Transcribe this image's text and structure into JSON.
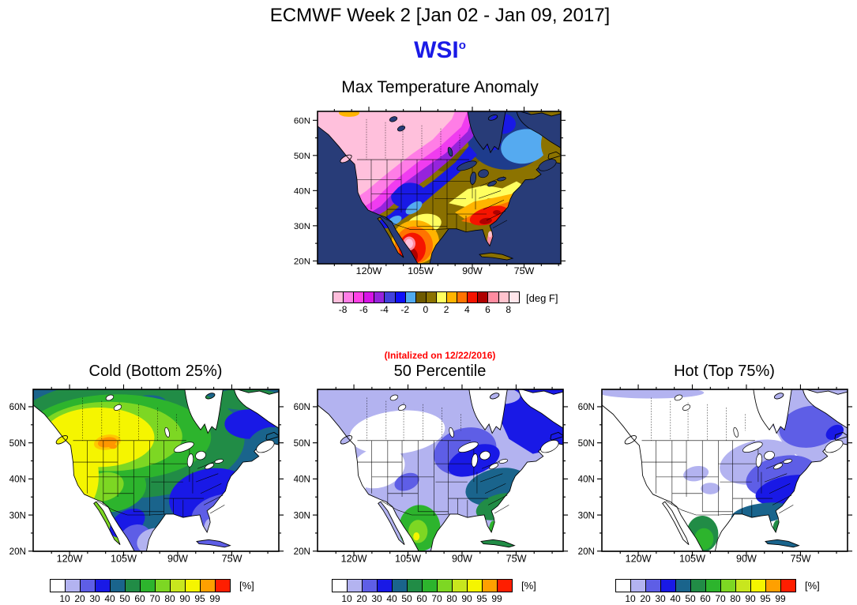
{
  "header": {
    "title": "ECMWF Week 2 [Jan 02 - Jan 09, 2017]",
    "logo_text": "WSI",
    "logo_sup": "o",
    "logo_color": "#1A1AE6"
  },
  "annotation": {
    "text": "(Initalized on 12/22/2016)",
    "color": "#FF0000"
  },
  "axes": {
    "lat_labels": [
      "60N",
      "50N",
      "40N",
      "30N",
      "20N"
    ],
    "lon_labels": [
      "120W",
      "105W",
      "90W",
      "75W"
    ]
  },
  "maps": {
    "anomaly": {
      "title": "Max Temperature Anomaly",
      "unit_label": "[deg F]",
      "ocean_color": "#283C78",
      "colorbar": {
        "colors": [
          "#FFBEDC",
          "#FF7DE6",
          "#FF41E6",
          "#D714E6",
          "#9623DC",
          "#4141DC",
          "#0F0FFA",
          "#50AAF0",
          "#6E5A00",
          "#8C7300",
          "#FFFF5F",
          "#FFB400",
          "#FF7300",
          "#F51400",
          "#AF0000",
          "#FF8CA0",
          "#FFC3CD",
          "#FFE6EB"
        ],
        "tick_labels": [
          "-8",
          "-6",
          "-4",
          "-2",
          "0",
          "2",
          "4",
          "6",
          "8"
        ]
      },
      "regions": [
        {
          "name": "base",
          "color": "#8A7000"
        },
        {
          "name": "khaki-dark",
          "color": "#6E5A00"
        },
        {
          "name": "navy-ne",
          "color": "#1E3C8C"
        },
        {
          "name": "blue-ne",
          "color": "#1919E6"
        },
        {
          "name": "skyblue-ne",
          "color": "#55AAF0"
        },
        {
          "name": "khaki-ne",
          "color": "#8C7300"
        },
        {
          "name": "purple-nw",
          "color": "#9623DC"
        },
        {
          "name": "blue-sw",
          "color": "#1919E6"
        },
        {
          "name": "skyblue-sw",
          "color": "#55AAF0"
        },
        {
          "name": "magenta-nw",
          "color": "#F03CF0"
        },
        {
          "name": "pink-nw",
          "color": "#FF7DE6"
        },
        {
          "name": "lightpink-nw",
          "color": "#FFC0DC"
        },
        {
          "name": "gold-top-notch",
          "color": "#FFB400"
        },
        {
          "name": "yellow-band",
          "color": "#FFFF5F"
        },
        {
          "name": "yellow-tx",
          "color": "#FFFF5F"
        },
        {
          "name": "gold-band",
          "color": "#FFB400"
        },
        {
          "name": "orange-band",
          "color": "#FF7300"
        },
        {
          "name": "red-core",
          "color": "#F51400"
        },
        {
          "name": "darkred-spots",
          "color": "#AF0000"
        },
        {
          "name": "florida-salmon",
          "color": "#FF8CA0"
        },
        {
          "name": "florida-lightpink",
          "color": "#FFC3CD"
        },
        {
          "name": "mexico-gold",
          "color": "#FFB400"
        },
        {
          "name": "mexico-orange",
          "color": "#FF7300"
        },
        {
          "name": "mexico-red",
          "color": "#F51400"
        },
        {
          "name": "mexico-darkred",
          "color": "#AF0000"
        },
        {
          "name": "mexico-salmon",
          "color": "#FF8CA0"
        },
        {
          "name": "mexico-pink",
          "color": "#FFC0DC"
        }
      ]
    },
    "cold": {
      "title": "Cold (Bottom 25%)",
      "unit_label": "[%]",
      "ocean_color": "#FFFFFF",
      "colorbar": {
        "colors": [
          "#FFFFFF",
          "#B3B3F0",
          "#5E5EE6",
          "#1919E6",
          "#1A648C",
          "#218C46",
          "#2DB42D",
          "#7DD723",
          "#C8E61E",
          "#F5F500",
          "#FFA000",
          "#FF1E00"
        ],
        "tick_labels": [
          "10",
          "20",
          "30",
          "40",
          "50",
          "60",
          "70",
          "80",
          "90",
          "95",
          "99"
        ]
      },
      "regions": [
        {
          "name": "base",
          "color": "#1A648C"
        },
        {
          "name": "green-dark",
          "color": "#218C46"
        },
        {
          "name": "blue-ne",
          "color": "#1919E6"
        },
        {
          "name": "teal-ne",
          "color": "#1A648C"
        },
        {
          "name": "green-mid",
          "color": "#2DB42D"
        },
        {
          "name": "green-light",
          "color": "#7DD723"
        },
        {
          "name": "yellow",
          "color": "#F5F500"
        },
        {
          "name": "gold-spot",
          "color": "#FFC800"
        },
        {
          "name": "orange-spot",
          "color": "#FF9600"
        },
        {
          "name": "blue-se",
          "color": "#1919E6"
        },
        {
          "name": "periwinkle-se",
          "color": "#5E5EE6"
        },
        {
          "name": "blue-mex",
          "color": "#1919E6"
        },
        {
          "name": "periwinkle-mex",
          "color": "#5E5EE6"
        },
        {
          "name": "lavender-gulf",
          "color": "#B3B3F0"
        },
        {
          "name": "blue-cuba",
          "color": "#5E5EE6"
        }
      ]
    },
    "p50": {
      "title": "50 Percentile",
      "unit_label": "[%]",
      "ocean_color": "#FFFFFF",
      "colorbar": {
        "colors": [
          "#FFFFFF",
          "#B3B3F0",
          "#5E5EE6",
          "#1919E6",
          "#1A648C",
          "#218C46",
          "#2DB42D",
          "#7DD723",
          "#C8E61E",
          "#F5F500",
          "#FFA000",
          "#FF1E00"
        ],
        "tick_labels": [
          "10",
          "20",
          "30",
          "40",
          "50",
          "60",
          "70",
          "80",
          "90",
          "95",
          "99"
        ]
      },
      "regions": [
        {
          "name": "base",
          "color": "#B3B3F0"
        },
        {
          "name": "white-nw",
          "color": "#FFFFFF"
        },
        {
          "name": "periwinkle-band",
          "color": "#5E5EE6"
        },
        {
          "name": "blue-ne",
          "color": "#1919E6"
        },
        {
          "name": "lavender-top",
          "color": "#B3B3F0"
        },
        {
          "name": "teal-eus",
          "color": "#1A648C"
        },
        {
          "name": "dkgreen-se",
          "color": "#218C46"
        },
        {
          "name": "green-mex",
          "color": "#2DB42D"
        },
        {
          "name": "chartreuse-mex",
          "color": "#7DD723"
        },
        {
          "name": "yellow-mex",
          "color": "#F5F500"
        }
      ]
    },
    "hot": {
      "title": "Hot (Top 75%)",
      "unit_label": "[%]",
      "ocean_color": "#FFFFFF",
      "colorbar": {
        "colors": [
          "#FFFFFF",
          "#B3B3F0",
          "#5E5EE6",
          "#1919E6",
          "#1A648C",
          "#218C46",
          "#2DB42D",
          "#7DD723",
          "#C8E61E",
          "#F5F500",
          "#FFA000",
          "#FF1E00"
        ],
        "tick_labels": [
          "10",
          "20",
          "30",
          "40",
          "50",
          "60",
          "70",
          "80",
          "90",
          "95",
          "99"
        ]
      },
      "regions": [
        {
          "name": "base",
          "color": "#FFFFFF"
        },
        {
          "name": "lavender",
          "color": "#B3B3F0"
        },
        {
          "name": "periwinkle",
          "color": "#5E5EE6"
        },
        {
          "name": "blue",
          "color": "#1919E6"
        },
        {
          "name": "teal-gulf",
          "color": "#1A648C"
        },
        {
          "name": "green-mex",
          "color": "#218C46"
        },
        {
          "name": "green-mex-light",
          "color": "#2DB42D"
        }
      ]
    }
  },
  "chart_data": [
    {
      "type": "heatmap",
      "subtype": "geographic-filled-contour-map",
      "title": "Max Temperature Anomaly",
      "unit": "deg F",
      "colorbar_tick_values": [
        -8,
        -6,
        -4,
        -2,
        0,
        2,
        4,
        6,
        8
      ],
      "lat_ticks": [
        "60N",
        "50N",
        "40N",
        "30N",
        "20N"
      ],
      "lon_ticks": [
        "120W",
        "105W",
        "90W",
        "75W"
      ],
      "regions": [
        {
          "area": "Western Canada / Pacific Northwest / northern Rockies",
          "value_degF": -8
        },
        {
          "area": "West coast and Southwest US ring",
          "value_degF": -5
        },
        {
          "area": "Central Plains / Colorado",
          "value_degF": -3
        },
        {
          "area": "Northern Canada around Hudson Bay",
          "value_degF": -3
        },
        {
          "area": "Quebec / Labrador interior",
          "value_degF": -2
        },
        {
          "area": "Atlantic Canada / New England / upper Midwest",
          "value_degF": 0
        },
        {
          "area": "Ohio Valley / south of Great Lakes",
          "value_degF": 2
        },
        {
          "area": "Southeast US (Tennessee, Alabama, Georgia)",
          "value_degF": 5
        },
        {
          "area": "Florida peninsula",
          "value_degF": 8
        },
        {
          "area": "Interior Mexico",
          "value_degF": 7
        }
      ]
    },
    {
      "type": "heatmap",
      "subtype": "geographic-filled-contour-map",
      "title": "Cold (Bottom 25%)",
      "unit": "%",
      "colorbar_tick_values": [
        10,
        20,
        30,
        40,
        50,
        60,
        70,
        80,
        90,
        95,
        99
      ],
      "lat_ticks": [
        "60N",
        "50N",
        "40N",
        "30N",
        "20N"
      ],
      "lon_ticks": [
        "120W",
        "105W",
        "90W",
        "75W"
      ],
      "regions": [
        {
          "area": "Northwest US / western Canada",
          "value_pct": 90
        },
        {
          "area": "Montana maximum spot",
          "value_pct": 97
        },
        {
          "area": "California coast",
          "value_pct": 90
        },
        {
          "area": "Central Canada",
          "value_pct": 70
        },
        {
          "area": "Great Lakes / Northeast US",
          "value_pct": 45
        },
        {
          "area": "Southeast US",
          "value_pct": 30
        },
        {
          "area": "Gulf Coast / south Texas",
          "value_pct": 15
        },
        {
          "area": "Quebec / Labrador",
          "value_pct": 45
        },
        {
          "area": "Mexico",
          "value_pct": 25
        }
      ]
    },
    {
      "type": "heatmap",
      "subtype": "geographic-filled-contour-map",
      "title": "50 Percentile",
      "annotation": "(Initalized on 12/22/2016)",
      "unit": "%",
      "colorbar_tick_values": [
        10,
        20,
        30,
        40,
        50,
        60,
        70,
        80,
        90,
        95,
        99
      ],
      "lat_ticks": [
        "60N",
        "50N",
        "40N",
        "30N",
        "20N"
      ],
      "lon_ticks": [
        "120W",
        "105W",
        "90W",
        "75W"
      ],
      "regions": [
        {
          "area": "Western Canada / northwest US",
          "value_pct": 8
        },
        {
          "area": "Interior western US",
          "value_pct": 15
        },
        {
          "area": "Central US / central Canada",
          "value_pct": 30
        },
        {
          "area": "Eastern Canada",
          "value_pct": 35
        },
        {
          "area": "Eastern US",
          "value_pct": 45
        },
        {
          "area": "Southeast US",
          "value_pct": 55
        },
        {
          "area": "Mexico",
          "value_pct": 70
        },
        {
          "area": "Florida",
          "value_pct": 65
        }
      ]
    },
    {
      "type": "heatmap",
      "subtype": "geographic-filled-contour-map",
      "title": "Hot (Top 75%)",
      "unit": "%",
      "colorbar_tick_values": [
        10,
        20,
        30,
        40,
        50,
        60,
        70,
        80,
        90,
        95,
        99
      ],
      "lat_ticks": [
        "60N",
        "50N",
        "40N",
        "30N",
        "20N"
      ],
      "lon_ticks": [
        "120W",
        "105W",
        "90W",
        "75W"
      ],
      "regions": [
        {
          "area": "Western US / western Canada",
          "value_pct": 5
        },
        {
          "area": "Eastern Canada",
          "value_pct": 15
        },
        {
          "area": "Eastern US",
          "value_pct": 25
        },
        {
          "area": "Southern US",
          "value_pct": 35
        },
        {
          "area": "Gulf Coast",
          "value_pct": 45
        },
        {
          "area": "Florida / Mexico",
          "value_pct": 60
        }
      ]
    }
  ]
}
